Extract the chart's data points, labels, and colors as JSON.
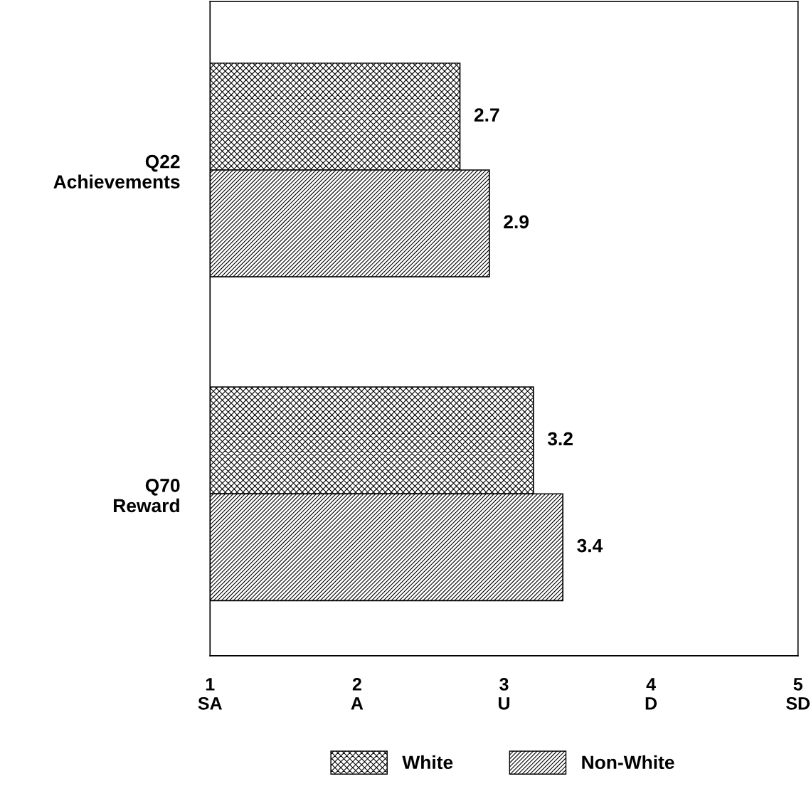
{
  "chart_data": {
    "type": "bar",
    "orientation": "horizontal",
    "categories": [
      "Q22\nAchievements",
      "Q70\nReward"
    ],
    "series": [
      {
        "name": "White",
        "color": "#000000",
        "values": [
          2.7,
          3.2
        ]
      },
      {
        "name": "Non-White",
        "color": "#000000",
        "values": [
          2.9,
          3.4
        ]
      }
    ],
    "xlim": [
      1,
      5
    ],
    "xticks": [
      {
        "value": 1,
        "label": "1\nSA"
      },
      {
        "value": 2,
        "label": "2\nA"
      },
      {
        "value": 3,
        "label": "3\nU"
      },
      {
        "value": 4,
        "label": "4\nD"
      },
      {
        "value": 5,
        "label": "5\nSD"
      }
    ],
    "data_labels": true,
    "legend": "bottom",
    "grid": false
  }
}
